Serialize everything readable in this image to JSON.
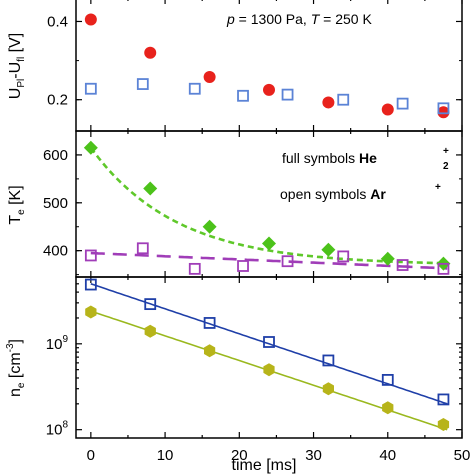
{
  "chart_data": [
    {
      "type": "scatter",
      "panel": "top",
      "ylabel": "U_Pl-U_fl [V]",
      "ylabel_parts": {
        "main": "U",
        "sub1": "Pl",
        "mid": "-U",
        "sub2": "fl",
        "unit": " [V]"
      },
      "ylim": [
        0.12,
        0.46
      ],
      "xlim": [
        -2,
        50
      ],
      "yticks": [
        {
          "v": 0.2,
          "label": "0.2"
        },
        {
          "v": 0.4,
          "label": "0.4"
        }
      ],
      "annotation": {
        "p_sym": "p",
        "p_val": " = 1300 Pa,  ",
        "T_sym": "T",
        "T_val": " = 250 K"
      },
      "series": [
        {
          "marker": "filled-circle",
          "color": "#e8221c",
          "x": [
            0,
            8,
            16,
            24,
            32,
            40,
            47.5
          ],
          "y": [
            0.405,
            0.32,
            0.258,
            0.225,
            0.193,
            0.175,
            0.168
          ]
        },
        {
          "marker": "open-square",
          "color": "#5b83d6",
          "x": [
            0,
            7,
            14,
            20.5,
            26.5,
            34,
            42,
            47.5
          ],
          "y": [
            0.228,
            0.24,
            0.228,
            0.21,
            0.213,
            0.2,
            0.19,
            0.178
          ]
        }
      ]
    },
    {
      "type": "scatter",
      "panel": "middle",
      "ylabel": "T_e [K]",
      "ylabel_parts": {
        "main": "T",
        "sub": "e",
        "unit": " [K]"
      },
      "ylim": [
        345,
        650
      ],
      "xlim": [
        -2,
        50
      ],
      "yticks": [
        {
          "v": 400,
          "label": "400"
        },
        {
          "v": 500,
          "label": "500"
        },
        {
          "v": 600,
          "label": "600"
        }
      ],
      "legend_text": [
        {
          "prefix": "full symbols ",
          "ion": "He",
          "sub": "2",
          "sup": "+"
        },
        {
          "prefix": "open symbols ",
          "ion": "Ar",
          "sub": "",
          "sup": "+"
        }
      ],
      "series": [
        {
          "marker": "filled-diamond",
          "color": "#4cc21a",
          "x": [
            0,
            8,
            16,
            24,
            32,
            40,
            47.5
          ],
          "y": [
            615,
            530,
            450,
            415,
            402,
            383,
            373
          ]
        },
        {
          "marker": "open-square",
          "color": "#a03db8",
          "x": [
            0,
            7,
            14,
            20.5,
            26.5,
            34,
            42,
            47.5
          ],
          "y": [
            390,
            405,
            362,
            368,
            378,
            388,
            370,
            362
          ]
        }
      ],
      "fits": [
        {
          "color": "#5fc82a",
          "dash": "6,4",
          "kind": "exp",
          "a": 370,
          "b": 245,
          "tau": 11.5
        },
        {
          "color": "#a03db8",
          "dash": "14,8",
          "kind": "lin",
          "y0": 395,
          "y1": 363
        }
      ]
    },
    {
      "type": "scatter",
      "panel": "bottom",
      "ylabel": "n_e [cm^-3]",
      "ylabel_parts": {
        "main": "n",
        "sub": "e",
        "unit1": " [cm",
        "sup": "-3",
        "unit2": "]"
      },
      "yscale": "log",
      "ylim": [
        80000000,
        6000000000
      ],
      "xlim": [
        -2,
        50
      ],
      "xlabel": "time [ms]",
      "xticks": [
        {
          "v": 0,
          "label": "0"
        },
        {
          "v": 10,
          "label": "10"
        },
        {
          "v": 20,
          "label": "20"
        },
        {
          "v": 30,
          "label": "30"
        },
        {
          "v": 40,
          "label": "40"
        },
        {
          "v": 50,
          "label": "50"
        }
      ],
      "yticks": [
        {
          "v": 100000000,
          "base": "10",
          "exp": "8"
        },
        {
          "v": 1000000000,
          "base": "10",
          "exp": "9"
        }
      ],
      "series": [
        {
          "marker": "open-square",
          "color": "#1f3fa8",
          "x": [
            0,
            8,
            16,
            24,
            32,
            40,
            47.5
          ],
          "y": [
            4900000000,
            2900000000,
            1750000000,
            1050000000,
            640000000,
            380000000,
            225000000
          ]
        },
        {
          "marker": "filled-hexagon",
          "color": "#b7b41a",
          "x": [
            0,
            8,
            16,
            24,
            32,
            40,
            47.5
          ],
          "y": [
            2350000000,
            1400000000,
            830000000,
            500000000,
            300000000,
            180000000,
            115000000
          ]
        }
      ],
      "fits": [
        {
          "color": "#1f3fa8",
          "kind": "loglin",
          "y0": 5000000000,
          "y1": 200000000
        },
        {
          "color": "#9ab81e",
          "kind": "loglin",
          "y0": 2400000000,
          "y1": 100000000
        }
      ]
    }
  ]
}
